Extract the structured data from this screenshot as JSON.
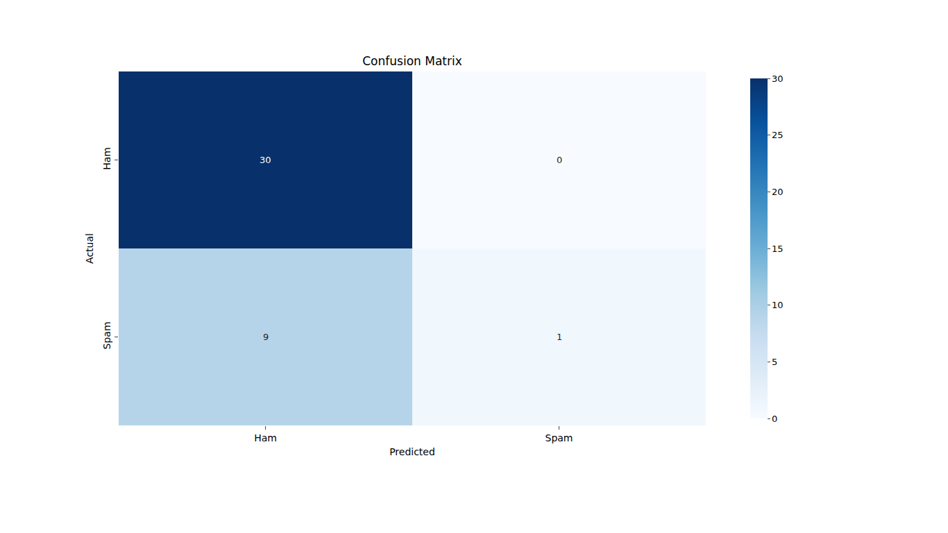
{
  "chart_data": {
    "type": "heatmap",
    "title": "Confusion Matrix",
    "x_label": "Predicted",
    "y_label": "Actual",
    "x": [
      "Ham",
      "Spam"
    ],
    "y": [
      "Ham",
      "Spam"
    ],
    "cells": [
      [
        30,
        0
      ],
      [
        9,
        1
      ]
    ],
    "color_range": [
      0,
      30
    ],
    "color_ticks": [
      0,
      5,
      10,
      15,
      20,
      25,
      30
    ],
    "color": "Blues",
    "data_labels": true
  }
}
